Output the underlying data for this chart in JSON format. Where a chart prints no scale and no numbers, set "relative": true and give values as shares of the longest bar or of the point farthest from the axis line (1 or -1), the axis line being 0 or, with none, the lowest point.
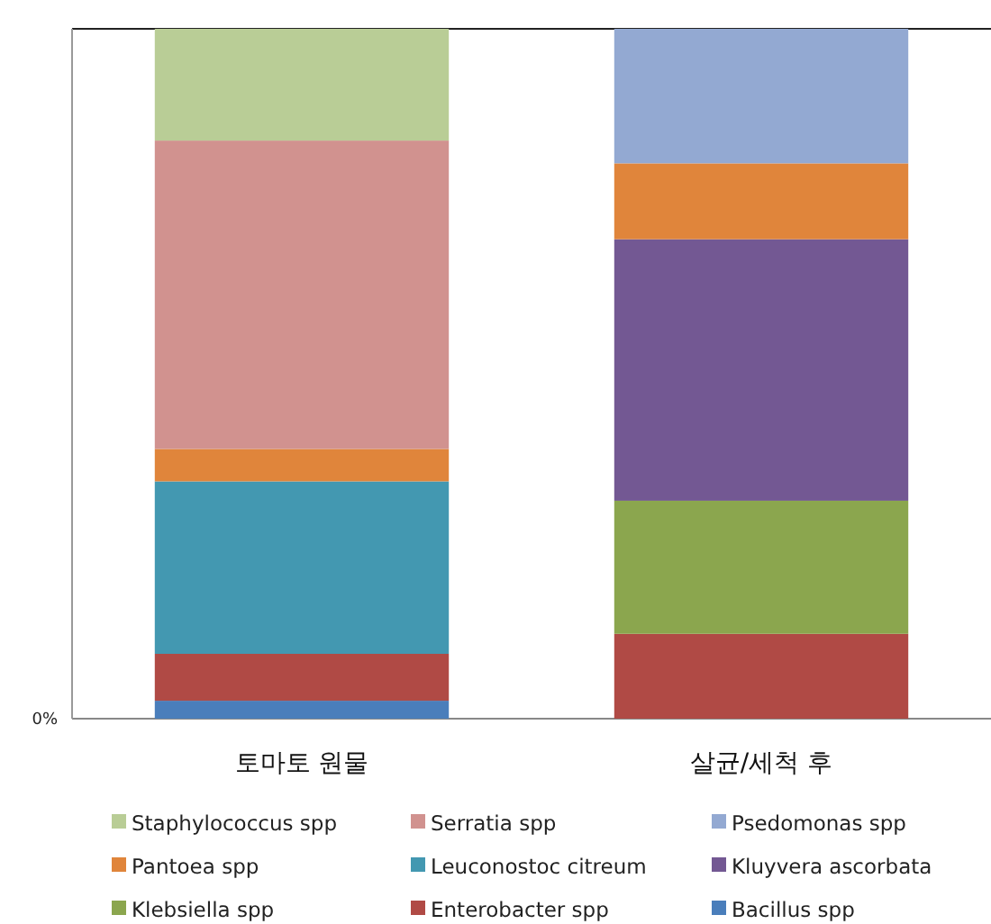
{
  "chart_data": {
    "type": "bar",
    "stacked": true,
    "relative": true,
    "categories": [
      "토마토 원물",
      "살균/세척 후"
    ],
    "series": [
      {
        "name": "Bacillus spp",
        "color": "#4a7ebb",
        "values": [
          0.026,
          null
        ]
      },
      {
        "name": "Enterobacter spp",
        "color": "#b04a45",
        "values": [
          0.068,
          0.123
        ]
      },
      {
        "name": "Klebsiella spp",
        "color": "#8ba64e",
        "values": [
          null,
          0.193
        ]
      },
      {
        "name": "Kluyvera ascorbata",
        "color": "#735893",
        "values": [
          null,
          0.379
        ]
      },
      {
        "name": "Leuconostoc citreum",
        "color": "#4398b1",
        "values": [
          0.25,
          null
        ]
      },
      {
        "name": "Pantoea spp",
        "color": "#e0853b",
        "values": [
          0.047,
          0.11
        ]
      },
      {
        "name": "Psedomonas spp",
        "color": "#93a9d2",
        "values": [
          null,
          0.195
        ]
      },
      {
        "name": "Serratia spp",
        "color": "#d1928f",
        "values": [
          0.447,
          null
        ]
      },
      {
        "name": "Staphylococcus spp",
        "color": "#b9cd96",
        "values": [
          0.162,
          null
        ]
      }
    ],
    "annotations": [
      "0%"
    ],
    "legend": "bottom"
  }
}
